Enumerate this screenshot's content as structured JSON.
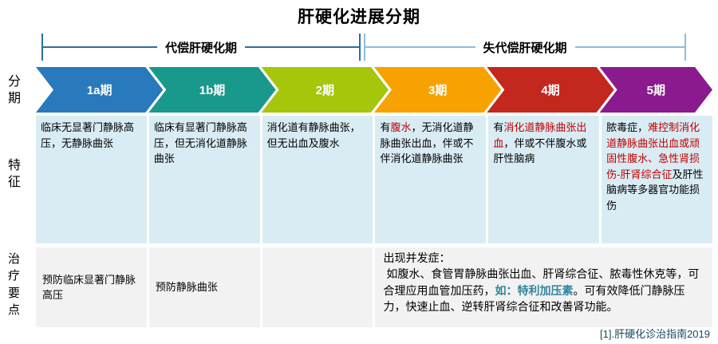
{
  "title": "肝硬化进展分期",
  "brackets": {
    "compensated": "代偿肝硬化期",
    "decompensated": "失代偿肝硬化期"
  },
  "row_labels": {
    "stage": "分期",
    "feature": "特征",
    "treatment": "治疗要点"
  },
  "colors": {
    "stage_1a": "#2979bd",
    "stage_1b": "#18998b",
    "stage_2": "#a5c60b",
    "stage_3": "#f7a200",
    "stage_4": "#c3271e",
    "stage_5": "#8a1a8d",
    "feature_bg": "#d9ecf4",
    "treatment_bg": "#f2f2f2",
    "highlight_red": "#c00000",
    "highlight_teal": "#31849b",
    "bracket_left": "#2d6f9b",
    "bracket_right": "#8fbcdc"
  },
  "stages": [
    {
      "id": "1a",
      "label": "1a期",
      "color": "#2979bd",
      "feature": [
        {
          "t": "临床无显著门静脉高压，无静脉曲张"
        }
      ],
      "treatment": "预防临床显著门静脉高压"
    },
    {
      "id": "1b",
      "label": "1b期",
      "color": "#18998b",
      "feature": [
        {
          "t": "临床有显著门静脉高压，但无消化道静脉曲张"
        }
      ],
      "treatment": "预防静脉曲张"
    },
    {
      "id": "2",
      "label": "2期",
      "color": "#a5c60b",
      "feature": [
        {
          "t": "消化道有静脉曲张，但无出血及腹水"
        }
      ],
      "treatment": ""
    },
    {
      "id": "3",
      "label": "3期",
      "color": "#f7a200",
      "feature": [
        {
          "t": "有"
        },
        {
          "t": "腹水",
          "hl": "red"
        },
        {
          "t": "，无消化道静脉曲张出血，伴或不伴消化道静脉曲张"
        }
      ]
    },
    {
      "id": "4",
      "label": "4期",
      "color": "#c3271e",
      "feature": [
        {
          "t": "有"
        },
        {
          "t": "消化道静脉曲张出血",
          "hl": "red"
        },
        {
          "t": "，伴或不伴腹水或肝性脑病"
        }
      ]
    },
    {
      "id": "5",
      "label": "5期",
      "color": "#8a1a8d",
      "feature": [
        {
          "t": "脓毒症，"
        },
        {
          "t": "难控制消化道静脉曲张出血或顽固性腹水、急性肾损伤-肝肾综合征",
          "hl": "red"
        },
        {
          "t": "及肝性脑病等多器官功能损伤"
        }
      ]
    }
  ],
  "treatment_merged": {
    "segments": [
      {
        "t": "出现并发症：\n 如腹水、食管胃静脉曲张出血、肝肾综合征、脓毒性休克等，可合理应用血管加压药，"
      },
      {
        "t": "如：特利加压素",
        "hl": "teal"
      },
      {
        "t": "。可有效降低门静脉压力，快速止血、逆转肝肾综合征和改善肾功能。"
      }
    ]
  },
  "footnote": "[1].肝硬化诊治指南2019"
}
